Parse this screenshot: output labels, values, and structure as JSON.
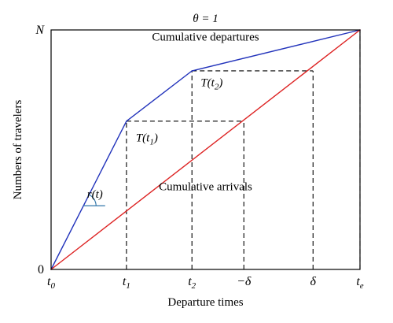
{
  "chart_data": {
    "type": "line",
    "title": "θ = 1",
    "xlabel": "Departure times",
    "ylabel": "Numbers of travelers",
    "xlim": [
      0,
      10
    ],
    "ylim": [
      0,
      10
    ],
    "x_ticks": [
      {
        "x": 0,
        "label": "t",
        "sub": "0"
      },
      {
        "x": 2.44,
        "label": "t",
        "sub": "1"
      },
      {
        "x": 4.56,
        "label": "t",
        "sub": "2"
      },
      {
        "x": 6.24,
        "label": "−δ",
        "sub": ""
      },
      {
        "x": 8.48,
        "label": "δ",
        "sub": ""
      },
      {
        "x": 10,
        "label": "t",
        "sub": "e"
      }
    ],
    "y_ticks": [
      {
        "y": 0,
        "label": "0"
      },
      {
        "y": 10,
        "label": "N"
      }
    ],
    "series": [
      {
        "name": "Cumulative departures",
        "color": "#2233bb",
        "x": [
          0,
          2.44,
          4.56,
          10
        ],
        "y": [
          0,
          6.19,
          8.29,
          10
        ]
      },
      {
        "name": "Cumulative arrivals",
        "color": "#dd2222",
        "x": [
          0,
          10
        ],
        "y": [
          0,
          10
        ]
      }
    ],
    "guides": [
      {
        "from": [
          2.44,
          6.19
        ],
        "to": [
          6.24,
          6.19
        ]
      },
      {
        "from": [
          4.56,
          8.29
        ],
        "to": [
          8.48,
          8.29
        ]
      },
      {
        "from": [
          2.44,
          0
        ],
        "to": [
          2.44,
          6.19
        ]
      },
      {
        "from": [
          4.56,
          0
        ],
        "to": [
          4.56,
          8.29
        ]
      },
      {
        "from": [
          6.24,
          0
        ],
        "to": [
          6.24,
          6.19
        ]
      },
      {
        "from": [
          8.48,
          0
        ],
        "to": [
          8.48,
          8.29
        ]
      },
      {
        "from": [
          10,
          0
        ],
        "to": [
          10,
          10
        ]
      }
    ],
    "annotations": [
      {
        "text": "T(t",
        "sub": "2",
        "after": ")",
        "x": 5.2,
        "y": 7.65
      },
      {
        "text": "T(t",
        "sub": "1",
        "after": ")",
        "x": 3.1,
        "y": 5.35
      },
      {
        "text": "r(t)",
        "x": 1.42,
        "y": 3.0
      }
    ],
    "grid": false
  }
}
